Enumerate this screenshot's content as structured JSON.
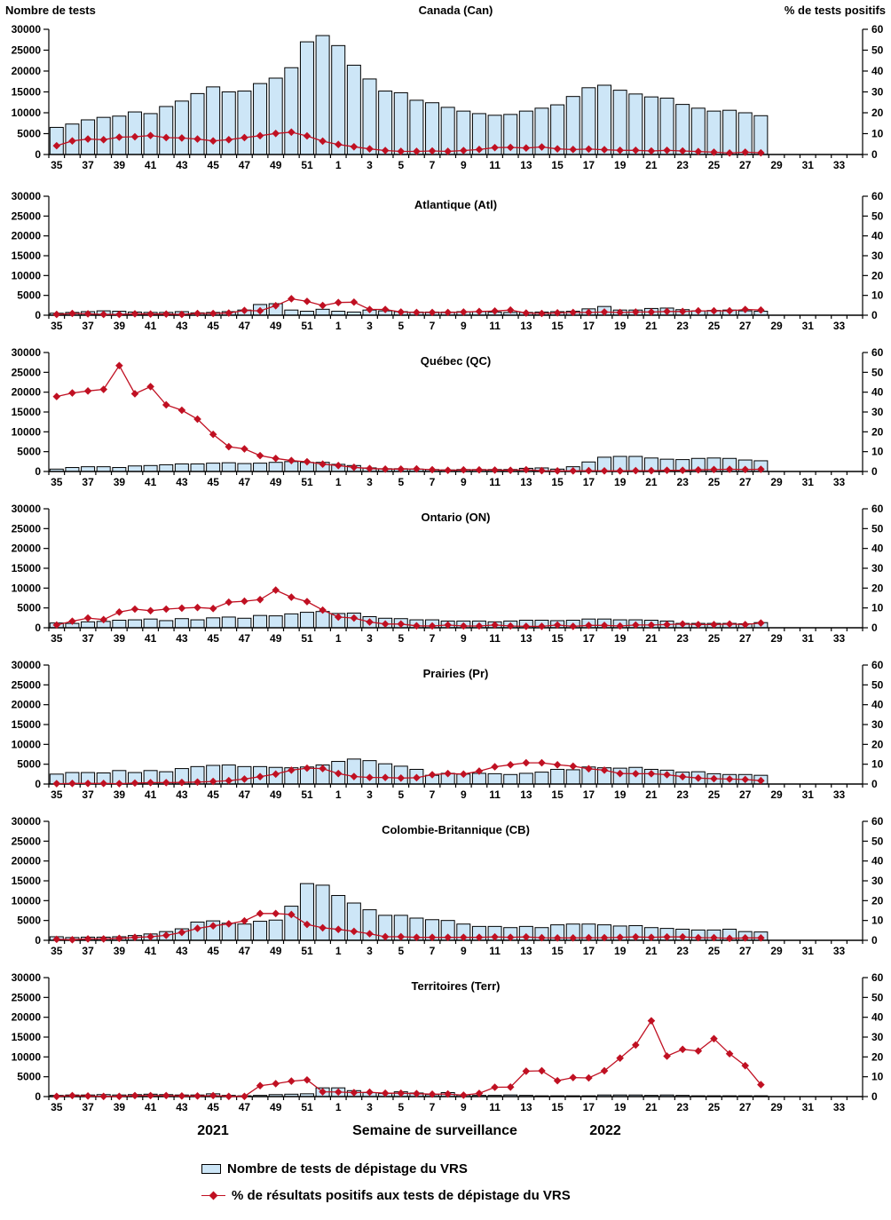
{
  "page": {
    "left_axis_title": "Nombre de tests",
    "right_axis_title": "% de tests positifs",
    "x_axis_title": "Semaine de surveillance",
    "year_left": "2021",
    "year_right": "2022",
    "legend": [
      {
        "marker": "bar",
        "label": "Nombre de tests de dépistage du VRS"
      },
      {
        "marker": "line",
        "label": "% de résultats positifs aux tests de dépistage du VRS"
      }
    ],
    "colors": {
      "bar_fill": "#CDE6F7",
      "bar_stroke": "#000000",
      "line": "#C01022",
      "text": "#000000"
    }
  },
  "axes": {
    "weeks": [
      35,
      36,
      37,
      38,
      39,
      40,
      41,
      42,
      43,
      44,
      45,
      46,
      47,
      48,
      49,
      50,
      51,
      52,
      1,
      2,
      3,
      4,
      5,
      6,
      7,
      8,
      9,
      10,
      11,
      12,
      13,
      14,
      15,
      16,
      17,
      18,
      19,
      20,
      21,
      22,
      23,
      24,
      25,
      26,
      27,
      28,
      29,
      30,
      31,
      32,
      33,
      34
    ],
    "label_every_odd_week": true,
    "left_ticks": [
      0,
      5000,
      10000,
      15000,
      20000,
      25000,
      30000
    ],
    "right_ticks": [
      0,
      10,
      20,
      30,
      40,
      50,
      60
    ],
    "ylim_left": [
      0,
      30000
    ],
    "ylim_right": [
      0,
      60
    ],
    "grid": false
  },
  "chart_data": [
    {
      "type": "bar+line",
      "region": "Canada (Can)",
      "tests": [
        6500,
        7300,
        8300,
        8900,
        9200,
        10200,
        9800,
        11500,
        12800,
        14600,
        16200,
        15000,
        15200,
        17000,
        18300,
        20800,
        27000,
        28500,
        26100,
        21400,
        18100,
        15200,
        14800,
        13000,
        12400,
        11300,
        10400,
        9800,
        9400,
        9600,
        10400,
        11100,
        11900,
        13900,
        16000,
        16600,
        15400,
        14500,
        13800,
        13500,
        12000,
        11100,
        10400,
        10600,
        10000,
        9300
      ],
      "pct_positifs": [
        4.2,
        6.5,
        7.4,
        7.1,
        8.3,
        8.5,
        9.1,
        8.1,
        7.9,
        7.4,
        6.5,
        7.1,
        8.1,
        9.0,
        10.1,
        10.7,
        8.9,
        6.4,
        4.8,
        3.7,
        2.7,
        1.9,
        1.5,
        1.5,
        1.7,
        1.5,
        1.9,
        2.4,
        3.3,
        3.4,
        3.1,
        3.6,
        2.7,
        2.4,
        2.6,
        2.3,
        2.0,
        2.0,
        1.7,
        2.0,
        1.7,
        1.4,
        1.1,
        0.7,
        1.1,
        0.8
      ]
    },
    {
      "type": "bar+line",
      "region": "Atlantique (Atl)",
      "tests": [
        500,
        700,
        900,
        1100,
        1000,
        800,
        700,
        700,
        900,
        600,
        700,
        900,
        1300,
        2700,
        2900,
        1300,
        1000,
        1500,
        1000,
        800,
        1300,
        1100,
        900,
        800,
        800,
        800,
        900,
        900,
        800,
        700,
        700,
        800,
        900,
        1000,
        1600,
        2200,
        1300,
        1300,
        1700,
        1800,
        1400,
        1100,
        1200,
        1300,
        1100,
        1000
      ],
      "pct_positifs": [
        0.4,
        0.9,
        0.7,
        0.4,
        0.4,
        0.7,
        0.6,
        0.6,
        0.4,
        0.9,
        0.9,
        1.1,
        2.4,
        2.2,
        4.8,
        8.3,
        7.0,
        4.9,
        6.4,
        6.6,
        2.9,
        2.9,
        1.6,
        1.4,
        1.4,
        1.4,
        1.6,
        1.9,
        2.1,
        2.6,
        1.1,
        0.9,
        1.2,
        1.4,
        1.4,
        1.6,
        1.4,
        1.6,
        1.6,
        1.9,
        1.9,
        2.2,
        2.2,
        2.2,
        2.9,
        2.6
      ]
    },
    {
      "type": "bar+line",
      "region": "Québec (QC)",
      "tests": [
        600,
        1000,
        1200,
        1200,
        1000,
        1400,
        1500,
        1700,
        1900,
        1900,
        2100,
        2200,
        2000,
        2100,
        2300,
        2500,
        2300,
        2300,
        1800,
        1500,
        900,
        700,
        700,
        600,
        500,
        400,
        500,
        500,
        500,
        500,
        800,
        900,
        600,
        1200,
        2400,
        3600,
        3800,
        3800,
        3400,
        3100,
        3000,
        3300,
        3400,
        3300,
        2900,
        2700
      ],
      "pct_positifs": [
        37.8,
        39.6,
        40.6,
        41.4,
        53.4,
        39.2,
        42.8,
        33.6,
        30.9,
        26.4,
        18.7,
        12.5,
        11.4,
        8.0,
        6.6,
        5.5,
        4.9,
        3.7,
        3.0,
        2.1,
        1.5,
        1.2,
        1.2,
        1.3,
        0.9,
        0.6,
        0.8,
        0.8,
        0.7,
        0.6,
        0.9,
        0.4,
        0.3,
        0.3,
        0.4,
        0.3,
        0.3,
        0.4,
        0.4,
        0.6,
        0.6,
        0.8,
        1.0,
        1.1,
        1.0,
        1.1
      ]
    },
    {
      "type": "bar+line",
      "region": "Ontario (ON)",
      "tests": [
        1200,
        1100,
        1500,
        1600,
        1900,
        2000,
        2200,
        1800,
        2300,
        2000,
        2500,
        2700,
        2400,
        3100,
        3000,
        3500,
        3900,
        4100,
        3600,
        3700,
        2800,
        2400,
        2300,
        2000,
        2000,
        1700,
        1700,
        1700,
        1500,
        1700,
        1900,
        1900,
        1800,
        1900,
        2200,
        2200,
        2000,
        2000,
        1900,
        1700,
        1100,
        1100,
        1100,
        1100,
        1000,
        1300
      ],
      "pct_positifs": [
        1.4,
        3.3,
        4.9,
        4.1,
        7.9,
        9.4,
        8.6,
        9.4,
        9.9,
        10.2,
        9.7,
        12.9,
        13.4,
        14.2,
        19.0,
        15.4,
        13.2,
        8.9,
        5.4,
        4.9,
        2.9,
        1.9,
        1.9,
        1.0,
        0.9,
        1.4,
        0.9,
        0.9,
        1.4,
        0.9,
        0.7,
        0.7,
        1.4,
        0.7,
        1.2,
        1.2,
        0.9,
        1.4,
        1.4,
        1.6,
        1.9,
        1.6,
        1.6,
        1.9,
        1.6,
        2.4
      ]
    },
    {
      "type": "bar+line",
      "region": "Prairies (Pr)",
      "tests": [
        2500,
        2900,
        2900,
        2800,
        3400,
        2900,
        3400,
        3100,
        3900,
        4400,
        4700,
        4800,
        4400,
        4400,
        4200,
        4100,
        4300,
        4800,
        5700,
        6300,
        5900,
        5100,
        4500,
        3700,
        2200,
        2700,
        2500,
        2700,
        2600,
        2400,
        2700,
        3000,
        3700,
        3600,
        4300,
        4100,
        4000,
        4200,
        3700,
        3500,
        3000,
        3100,
        2600,
        2400,
        2400,
        2200
      ],
      "pct_positifs": [
        0.2,
        0.3,
        0.3,
        0.3,
        0.2,
        0.5,
        0.7,
        0.7,
        0.8,
        1.0,
        1.3,
        1.7,
        2.5,
        3.7,
        5.0,
        7.0,
        8.0,
        7.8,
        5.3,
        3.8,
        3.3,
        3.3,
        3.0,
        3.2,
        4.7,
        5.3,
        5.0,
        6.5,
        8.7,
        9.7,
        10.7,
        10.7,
        9.7,
        9.0,
        7.7,
        7.0,
        5.3,
        5.2,
        5.2,
        4.7,
        3.7,
        3.0,
        2.7,
        2.5,
        2.3,
        1.7
      ]
    },
    {
      "type": "bar+line",
      "region": "Colombie-Britannique (CB)",
      "tests": [
        900,
        700,
        800,
        800,
        900,
        1200,
        1600,
        2200,
        2900,
        4600,
        4900,
        4300,
        4100,
        4800,
        5100,
        8600,
        14300,
        13900,
        11300,
        9400,
        7700,
        6300,
        6300,
        5600,
        5200,
        5000,
        4100,
        3500,
        3500,
        3200,
        3500,
        3200,
        3900,
        4100,
        4100,
        3900,
        3600,
        3700,
        3200,
        3000,
        2800,
        2600,
        2600,
        2800,
        2200,
        2100
      ],
      "pct_positifs": [
        0.5,
        0.3,
        0.7,
        0.7,
        1.0,
        1.5,
        1.8,
        2.5,
        4.0,
        6.0,
        7.3,
        8.3,
        9.8,
        13.5,
        13.5,
        13.0,
        8.0,
        6.3,
        5.5,
        4.5,
        3.3,
        1.8,
        1.8,
        1.5,
        1.5,
        1.5,
        1.5,
        1.5,
        1.7,
        1.5,
        1.7,
        1.3,
        1.2,
        1.2,
        1.3,
        1.3,
        1.5,
        1.7,
        1.5,
        1.7,
        1.7,
        1.3,
        1.3,
        1.0,
        1.2,
        1.2
      ]
    },
    {
      "type": "bar+line",
      "region": "Territoires (Terr)",
      "tests": [
        300,
        400,
        400,
        500,
        400,
        500,
        600,
        500,
        400,
        400,
        700,
        300,
        200,
        300,
        500,
        600,
        700,
        2200,
        2200,
        1500,
        1000,
        800,
        1200,
        900,
        500,
        1000,
        400,
        300,
        300,
        400,
        300,
        200,
        200,
        200,
        200,
        400,
        400,
        400,
        300,
        400,
        300,
        200,
        200,
        200,
        200,
        200
      ],
      "pct_positifs": [
        0.1,
        0.5,
        0.3,
        0.1,
        0.1,
        0.5,
        0.5,
        0.5,
        0.3,
        0.3,
        0.5,
        0.1,
        0.1,
        5.5,
        6.5,
        7.8,
        8.4,
        2.4,
        2.3,
        2.0,
        2.2,
        1.7,
        1.7,
        1.5,
        1.2,
        1.3,
        0.7,
        1.6,
        4.7,
        4.8,
        12.8,
        13.0,
        8.0,
        9.6,
        9.4,
        13.0,
        19.4,
        26.0,
        38.2,
        20.4,
        23.8,
        23.0,
        29.2,
        21.6,
        15.6,
        6.0
      ]
    }
  ]
}
